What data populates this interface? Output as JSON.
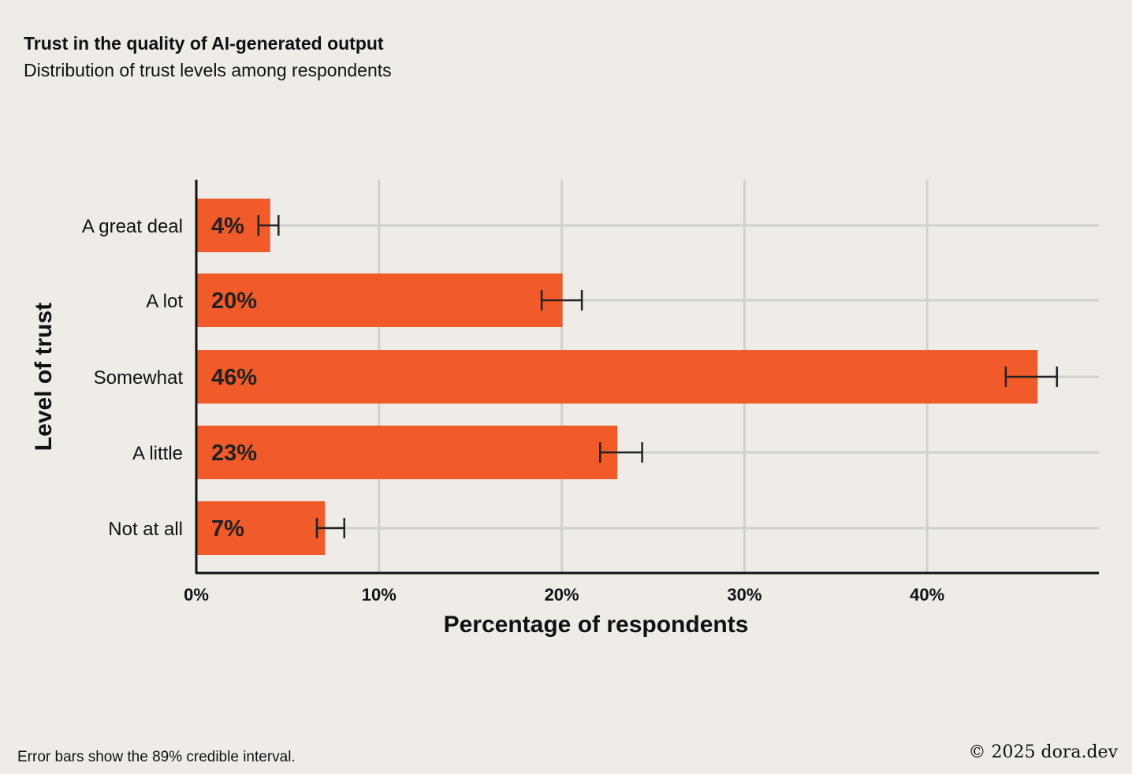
{
  "chart_data": {
    "type": "bar",
    "orientation": "horizontal",
    "title": "Trust in the quality of AI-generated output",
    "subtitle": "Distribution of trust levels among respondents",
    "categories": [
      "A great deal",
      "A lot",
      "Somewhat",
      "A little",
      "Not at all"
    ],
    "values": [
      4,
      20,
      46,
      23,
      7
    ],
    "value_labels": [
      "4%",
      "20%",
      "46%",
      "23%",
      "7%"
    ],
    "error_low": [
      3.4,
      18.9,
      44.3,
      22.1,
      6.6
    ],
    "error_high": [
      4.5,
      21.1,
      47.1,
      24.4,
      8.1
    ],
    "xlabel": "Percentage of respondents",
    "ylabel": "Level of trust",
    "xlim": [
      0,
      49.5
    ],
    "xticks": [
      0,
      10,
      20,
      30,
      40
    ],
    "xtick_labels": [
      "0%",
      "10%",
      "20%",
      "30%",
      "40%"
    ],
    "grid": true,
    "bar_color": "#f15a29",
    "footnote": "Error bars show the 89% credible interval.",
    "copyright": "© 2025 dora.dev"
  }
}
